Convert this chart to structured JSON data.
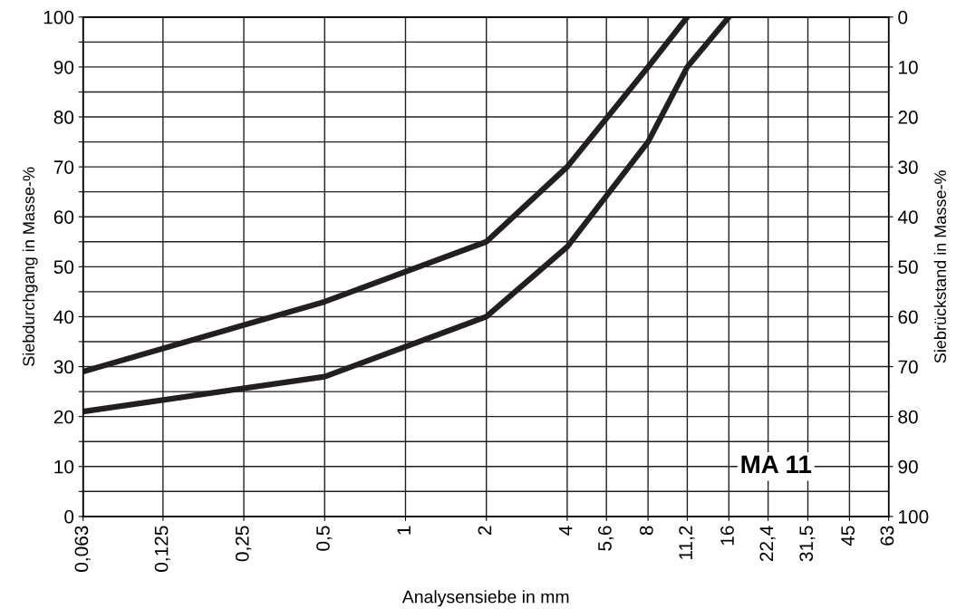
{
  "chart_data": {
    "type": "line",
    "xlabel": "Analysensiebe in mm",
    "ylabel": "Siebdurchgang in Masse-%",
    "y2label": "Siebrückstand in Masse-%",
    "log": "x",
    "grid": true,
    "marker": "none",
    "line_style": "solid",
    "xlim": [
      0.063,
      63
    ],
    "xticks": [
      {
        "value": 0.063,
        "label": "0,063"
      },
      {
        "value": 0.125,
        "label": "0,125"
      },
      {
        "value": 0.25,
        "label": "0,25"
      },
      {
        "value": 0.5,
        "label": "0,5"
      },
      1,
      2,
      4,
      {
        "value": 5.6,
        "label": "5,6"
      },
      8,
      {
        "value": 11.2,
        "label": "11,2"
      },
      16,
      {
        "value": 22.4,
        "label": "22,4"
      },
      {
        "value": 31.5,
        "label": "31,5"
      },
      45,
      63
    ],
    "ylim": [
      0,
      100
    ],
    "yticks": [
      0,
      {
        "value": 5,
        "label": null
      },
      10,
      {
        "value": 15,
        "label": null
      },
      20,
      {
        "value": 25,
        "label": null
      },
      30,
      {
        "value": 35,
        "label": null
      },
      40,
      {
        "value": 45,
        "label": null
      },
      50,
      {
        "value": 55,
        "label": null
      },
      60,
      {
        "value": 65,
        "label": null
      },
      70,
      {
        "value": 75,
        "label": null
      },
      80,
      {
        "value": 85,
        "label": null
      },
      90,
      {
        "value": 95,
        "label": null
      },
      100
    ],
    "y2lim": [
      100,
      0
    ],
    "y2ticks": [
      0,
      10,
      20,
      30,
      40,
      50,
      60,
      70,
      80,
      90,
      100
    ],
    "series": [
      {
        "color": "#231f20",
        "x": [
          0.063,
          0.5,
          2,
          4,
          8,
          11.2
        ],
        "values": [
          29,
          43,
          55,
          70,
          90,
          100
        ]
      },
      {
        "color": "#231f20",
        "x": [
          0.063,
          0.5,
          2,
          4,
          8,
          11.2,
          16
        ],
        "values": [
          21,
          28,
          40,
          54,
          75,
          90,
          100
        ]
      }
    ],
    "annotations": [
      "MA 11"
    ]
  }
}
